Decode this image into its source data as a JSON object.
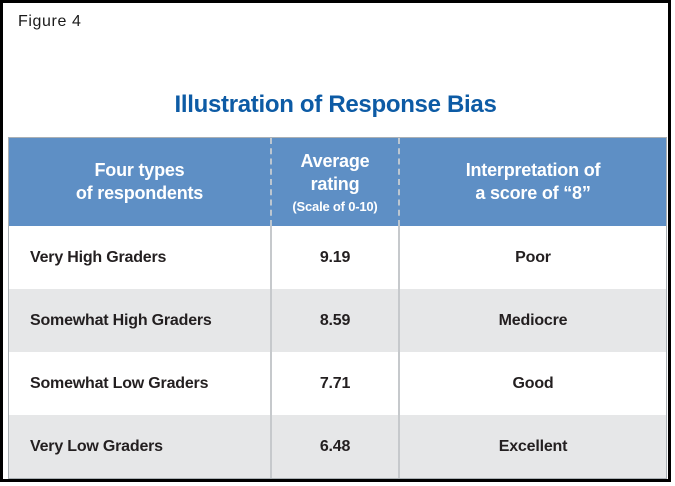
{
  "figure_label": "Figure 4",
  "title": "Illustration of Response Bias",
  "colors": {
    "title_blue": "#0d5ba5",
    "header_blue": "#5e8fc5",
    "row_alt_gray": "#e6e7e8",
    "body_text": "#231f20",
    "frame_black": "#000000"
  },
  "table": {
    "headers": [
      {
        "line1": "Four types",
        "line2": "of respondents",
        "subnote": ""
      },
      {
        "line1": "Average",
        "line2": "rating",
        "subnote": "(Scale of 0-10)"
      },
      {
        "line1": "Interpretation of",
        "line2": "a score of “8”",
        "subnote": ""
      }
    ],
    "rows": [
      {
        "respondent": "Very High Graders",
        "rating": "9.19",
        "interpretation": "Poor"
      },
      {
        "respondent": "Somewhat High Graders",
        "rating": "8.59",
        "interpretation": "Mediocre"
      },
      {
        "respondent": "Somewhat Low Graders",
        "rating": "7.71",
        "interpretation": "Good"
      },
      {
        "respondent": "Very Low Graders",
        "rating": "6.48",
        "interpretation": "Excellent"
      }
    ]
  },
  "chart_data": {
    "type": "table",
    "title": "Illustration of Response Bias",
    "figure_label": "Figure 4",
    "columns": [
      "Four types of respondents",
      "Average rating (Scale of 0-10)",
      "Interpretation of a score of “8”"
    ],
    "rows": [
      [
        "Very High Graders",
        9.19,
        "Poor"
      ],
      [
        "Somewhat High Graders",
        8.59,
        "Mediocre"
      ],
      [
        "Somewhat Low Graders",
        7.71,
        "Good"
      ],
      [
        "Very Low Graders",
        6.48,
        "Excellent"
      ]
    ]
  }
}
